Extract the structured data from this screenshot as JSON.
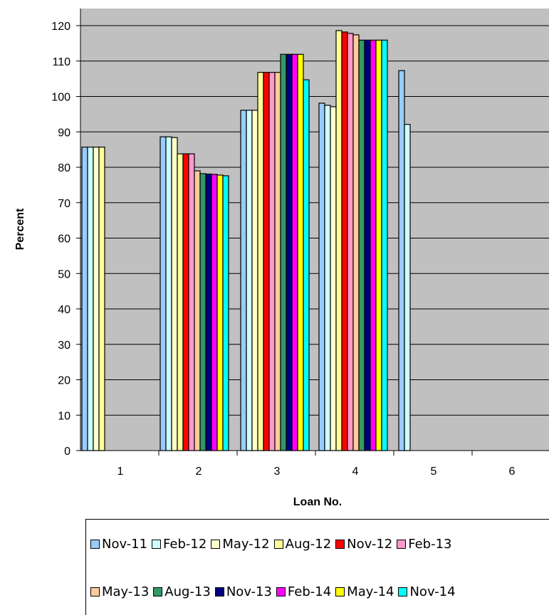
{
  "chart_data": {
    "type": "bar",
    "xlabel": "Loan No.",
    "ylabel": "Percent",
    "ylim": [
      0,
      124
    ],
    "yticks": [
      0,
      10,
      20,
      30,
      40,
      50,
      60,
      70,
      80,
      90,
      100,
      110,
      120
    ],
    "categories": [
      "1",
      "2",
      "3",
      "4",
      "5",
      "6"
    ],
    "plot_background": "#c0c0c0",
    "grid": true,
    "legend_position": "bottom",
    "series": [
      {
        "name": "Nov-11",
        "color": "#99ccff",
        "values": [
          null,
          85.7,
          88.6,
          96.1,
          98.1,
          107.3
        ]
      },
      {
        "name": "Feb-12",
        "color": "#ccffff",
        "values": [
          null,
          85.7,
          88.6,
          96.1,
          97.5,
          92.1
        ]
      },
      {
        "name": "May-12",
        "color": "#ffffcc",
        "values": [
          null,
          85.7,
          88.4,
          96.1,
          97.1,
          null
        ]
      },
      {
        "name": "Aug-12",
        "color": "#ffff99",
        "values": [
          null,
          85.7,
          83.8,
          106.8,
          118.6,
          null
        ]
      },
      {
        "name": "Nov-12",
        "color": "#ff0000",
        "values": [
          null,
          null,
          83.8,
          106.8,
          118.2,
          null
        ]
      },
      {
        "name": "Feb-13",
        "color": "#ff99cc",
        "values": [
          null,
          null,
          83.8,
          106.8,
          117.8,
          null
        ]
      },
      {
        "name": "May-13",
        "color": "#ffcc99",
        "values": [
          null,
          null,
          79.0,
          106.8,
          117.4,
          null
        ]
      },
      {
        "name": "Aug-13",
        "color": "#339966",
        "values": [
          null,
          null,
          78.2,
          111.9,
          115.9,
          null
        ]
      },
      {
        "name": "Nov-13",
        "color": "#000080",
        "values": [
          null,
          null,
          78.1,
          111.9,
          115.9,
          null
        ]
      },
      {
        "name": "Feb-14",
        "color": "#ff00ff",
        "values": [
          null,
          null,
          78.0,
          111.9,
          115.9,
          null
        ]
      },
      {
        "name": "May-14",
        "color": "#ffff00",
        "values": [
          null,
          null,
          77.8,
          111.9,
          115.9,
          null
        ]
      },
      {
        "name": "Nov-14",
        "color": "#00ffff",
        "values": [
          null,
          null,
          77.6,
          104.7,
          115.9,
          null
        ]
      }
    ]
  }
}
